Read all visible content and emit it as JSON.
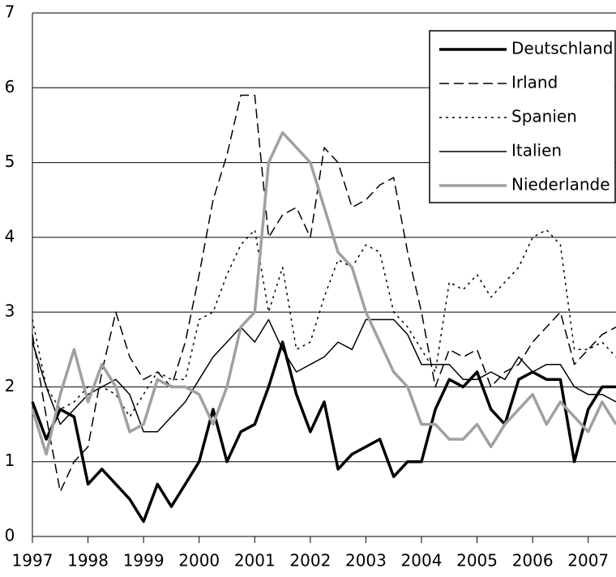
{
  "chart_data": {
    "type": "line",
    "x": [
      1997,
      1997.25,
      1997.5,
      1997.75,
      1998,
      1998.25,
      1998.5,
      1998.75,
      1999,
      1999.25,
      1999.5,
      1999.75,
      2000,
      2000.25,
      2000.5,
      2000.75,
      2001,
      2001.25,
      2001.5,
      2001.75,
      2002,
      2002.25,
      2002.5,
      2002.75,
      2003,
      2003.25,
      2003.5,
      2003.75,
      2004,
      2004.25,
      2004.5,
      2004.75,
      2005,
      2005.25,
      2005.5,
      2005.75,
      2006,
      2006.25,
      2006.5,
      2006.75,
      2007,
      2007.25,
      2007.5
    ],
    "xlim": [
      1997,
      2007.5
    ],
    "xticks": [
      1997,
      1998,
      1999,
      2000,
      2001,
      2002,
      2003,
      2004,
      2005,
      2006,
      2007
    ],
    "ylim": [
      0,
      7
    ],
    "yticks": [
      0,
      1,
      2,
      3,
      4,
      5,
      6,
      7
    ],
    "grid": true,
    "legend": "top-right",
    "series": [
      {
        "name": "Deutschland",
        "color": "#000000",
        "style": "solid",
        "weight": "bold",
        "values": [
          1.8,
          1.3,
          1.7,
          1.6,
          0.7,
          0.9,
          0.7,
          0.5,
          0.2,
          0.7,
          0.4,
          0.7,
          1.0,
          1.7,
          1.0,
          1.4,
          1.5,
          2.0,
          2.6,
          1.9,
          1.4,
          1.8,
          0.9,
          1.1,
          1.2,
          1.3,
          0.8,
          1.0,
          1.0,
          1.7,
          2.1,
          2.0,
          2.2,
          1.7,
          1.5,
          2.1,
          2.2,
          2.1,
          2.1,
          1.0,
          1.7,
          2.0,
          2.0
        ]
      },
      {
        "name": "Irland",
        "color": "#000000",
        "style": "dashed",
        "weight": "normal",
        "values": [
          2.7,
          1.6,
          0.6,
          1.0,
          1.2,
          2.2,
          3.0,
          2.4,
          2.1,
          2.2,
          2.0,
          2.6,
          3.5,
          4.5,
          5.1,
          5.9,
          5.9,
          4.0,
          4.3,
          4.4,
          4.0,
          5.2,
          5.0,
          4.4,
          4.5,
          4.7,
          4.8,
          3.8,
          3.0,
          2.0,
          2.5,
          2.4,
          2.5,
          2.0,
          2.2,
          2.3,
          2.6,
          2.8,
          3.0,
          2.3,
          2.5,
          2.7,
          2.8
        ]
      },
      {
        "name": "Spanien",
        "color": "#000000",
        "style": "dotted",
        "weight": "normal",
        "values": [
          2.9,
          2.0,
          1.7,
          1.8,
          2.0,
          2.0,
          1.9,
          1.6,
          1.9,
          2.2,
          2.1,
          2.1,
          2.9,
          3.0,
          3.5,
          3.9,
          4.1,
          3.0,
          3.6,
          2.5,
          2.6,
          3.2,
          3.7,
          3.6,
          3.9,
          3.8,
          3.0,
          2.8,
          2.5,
          2.2,
          3.4,
          3.3,
          3.5,
          3.2,
          3.4,
          3.6,
          4.0,
          4.1,
          3.9,
          2.5,
          2.5,
          2.6,
          2.4
        ]
      },
      {
        "name": "Italien",
        "color": "#000000",
        "style": "solid",
        "weight": "normal",
        "values": [
          2.6,
          2.0,
          1.5,
          1.7,
          1.9,
          2.0,
          2.1,
          1.9,
          1.4,
          1.4,
          1.6,
          1.8,
          2.1,
          2.4,
          2.6,
          2.8,
          2.6,
          2.9,
          2.5,
          2.2,
          2.3,
          2.4,
          2.6,
          2.5,
          2.9,
          2.9,
          2.9,
          2.7,
          2.3,
          2.3,
          2.3,
          2.1,
          2.1,
          2.2,
          2.1,
          2.4,
          2.2,
          2.3,
          2.3,
          2.0,
          1.9,
          1.9,
          1.8
        ]
      },
      {
        "name": "Niederlande",
        "color": "#a0a0a0",
        "style": "solid",
        "weight": "bold",
        "values": [
          1.7,
          1.1,
          1.9,
          2.5,
          1.8,
          2.3,
          2.0,
          1.4,
          1.5,
          2.1,
          2.0,
          2.0,
          1.9,
          1.5,
          2.0,
          2.8,
          3.0,
          5.0,
          5.4,
          5.2,
          5.0,
          4.4,
          3.8,
          3.6,
          3.0,
          2.6,
          2.2,
          2.0,
          1.5,
          1.5,
          1.3,
          1.3,
          1.5,
          1.2,
          1.5,
          1.7,
          1.9,
          1.5,
          1.8,
          1.6,
          1.4,
          1.8,
          1.5
        ]
      }
    ]
  }
}
